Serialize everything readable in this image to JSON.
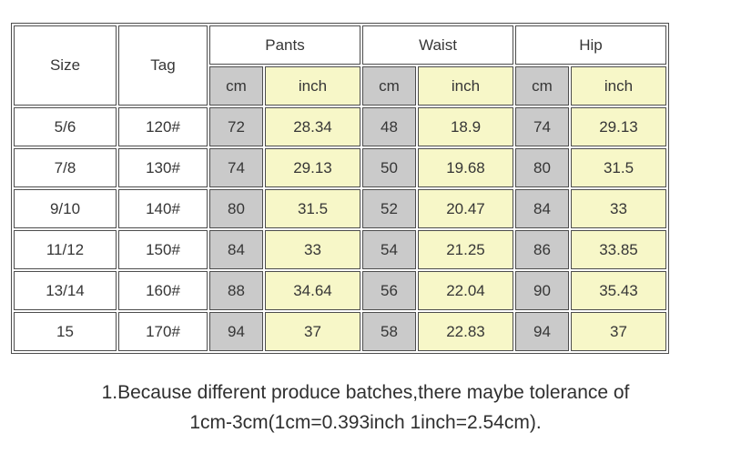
{
  "colors": {
    "cm_column_bg": "#cacaca",
    "inch_column_bg": "#f7f7c8",
    "border": "#4d4d4d",
    "text": "#363636"
  },
  "table": {
    "header": {
      "size": "Size",
      "tag": "Tag",
      "groups": [
        {
          "label": "Pants"
        },
        {
          "label": "Waist"
        },
        {
          "label": "Hip"
        }
      ],
      "unit_cm": "cm",
      "unit_inch": "inch"
    },
    "rows": [
      {
        "size": "5/6",
        "tag": "120#",
        "pants_cm": "72",
        "pants_inch": "28.34",
        "waist_cm": "48",
        "waist_inch": "18.9",
        "hip_cm": "74",
        "hip_inch": "29.13"
      },
      {
        "size": "7/8",
        "tag": "130#",
        "pants_cm": "74",
        "pants_inch": "29.13",
        "waist_cm": "50",
        "waist_inch": "19.68",
        "hip_cm": "80",
        "hip_inch": "31.5"
      },
      {
        "size": "9/10",
        "tag": "140#",
        "pants_cm": "80",
        "pants_inch": "31.5",
        "waist_cm": "52",
        "waist_inch": "20.47",
        "hip_cm": "84",
        "hip_inch": "33"
      },
      {
        "size": "11/12",
        "tag": "150#",
        "pants_cm": "84",
        "pants_inch": "33",
        "waist_cm": "54",
        "waist_inch": "21.25",
        "hip_cm": "86",
        "hip_inch": "33.85"
      },
      {
        "size": "13/14",
        "tag": "160#",
        "pants_cm": "88",
        "pants_inch": "34.64",
        "waist_cm": "56",
        "waist_inch": "22.04",
        "hip_cm": "90",
        "hip_inch": "35.43"
      },
      {
        "size": "15",
        "tag": "170#",
        "pants_cm": "94",
        "pants_inch": "37",
        "waist_cm": "58",
        "waist_inch": "22.83",
        "hip_cm": "94",
        "hip_inch": "37"
      }
    ]
  },
  "note": {
    "line1": "1.Because different produce batches,there maybe tolerance of",
    "line2": "1cm-3cm(1cm=0.393inch 1inch=2.54cm)."
  }
}
